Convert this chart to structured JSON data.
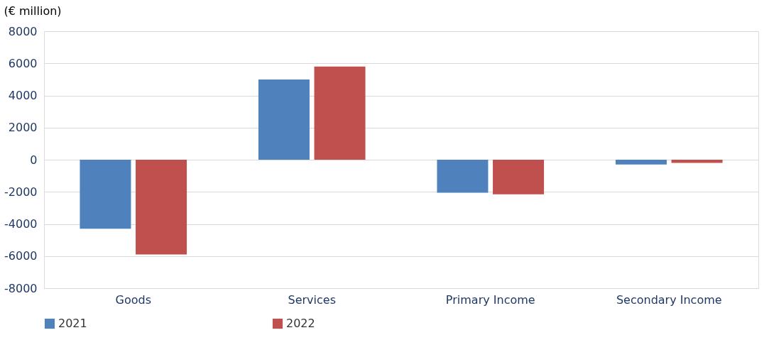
{
  "chart_data": {
    "type": "bar",
    "ylabel": "(€ million)",
    "categories": [
      "Goods",
      "Services",
      "Primary Income",
      "Secondary Income"
    ],
    "series": [
      {
        "name": "2021",
        "color": "#4f81bd",
        "values": [
          -4300,
          5000,
          -2050,
          -300
        ]
      },
      {
        "name": "2022",
        "color": "#c0504d",
        "values": [
          -5900,
          5800,
          -2150,
          -200
        ]
      }
    ],
    "ylim": [
      -8000,
      8000
    ],
    "yticks": [
      -8000,
      -6000,
      -4000,
      -2000,
      0,
      2000,
      4000,
      6000,
      8000
    ],
    "grid": "y",
    "legend": "bottom"
  }
}
